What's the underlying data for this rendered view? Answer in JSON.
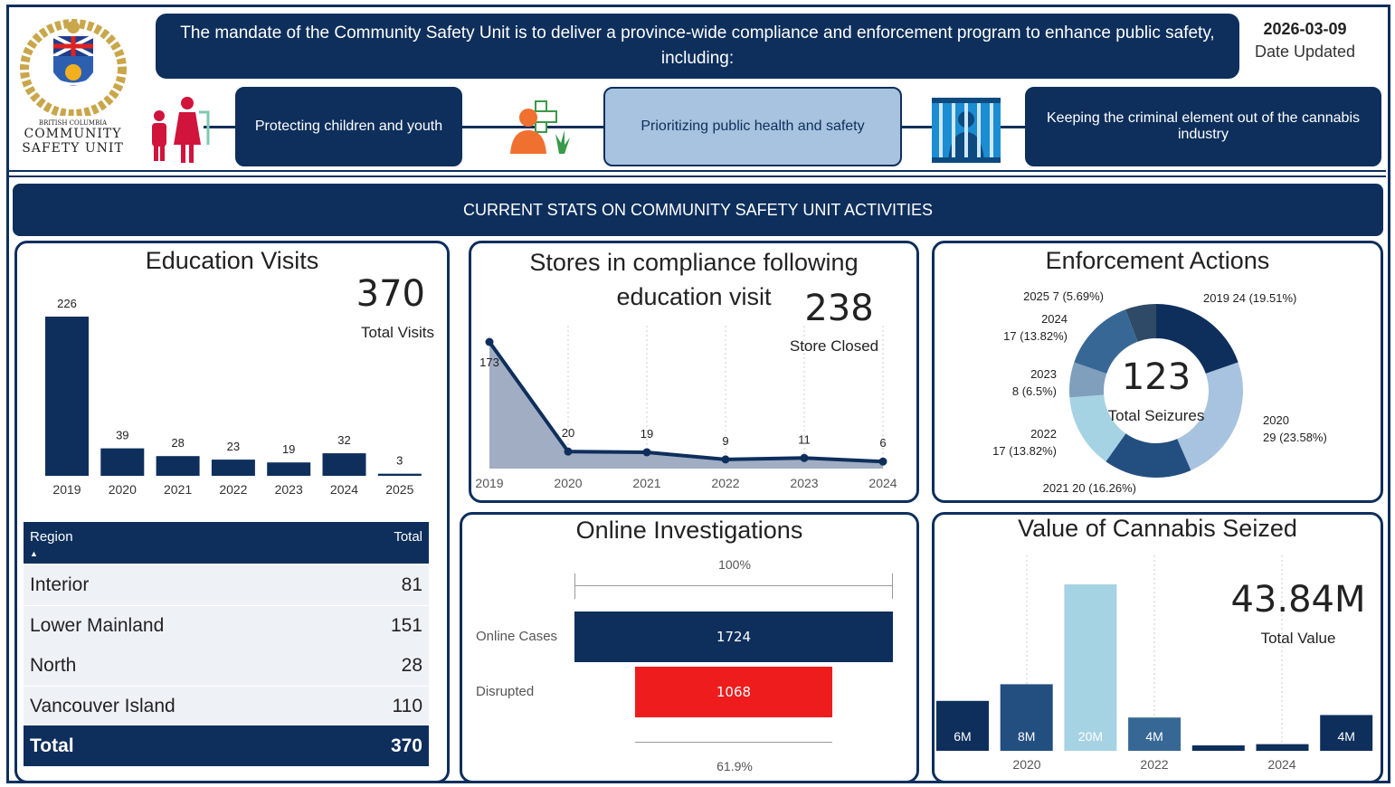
{
  "header": {
    "logo_text": [
      "BRITISH COLUMBIA",
      "COMMUNITY",
      "SAFETY UNIT"
    ],
    "mandate": "The mandate of the Community Safety Unit is to deliver a province-wide compliance and enforcement program to enhance public safety, including:",
    "date": "2026-03-09",
    "date_label": "Date Updated",
    "pillars": [
      {
        "label": "Protecting children and youth",
        "icon": "family-icon"
      },
      {
        "label": "Prioritizing public health and safety",
        "icon": "health-cannabis-icon"
      },
      {
        "label": "Keeping the criminal element out of the cannabis industry",
        "icon": "jail-icon"
      }
    ]
  },
  "banner": "CURRENT STATS ON COMMUNITY SAFETY UNIT ACTIVITIES",
  "colors": {
    "navy": "#0e2f5c",
    "red": "#ee1c1c",
    "light_blue": "#a6d3e3"
  },
  "education": {
    "title": "Education Visits",
    "total": "370",
    "total_label": "Total Visits",
    "table": {
      "headers": [
        "Region",
        "Total"
      ],
      "rows": [
        [
          "Interior",
          "81"
        ],
        [
          "Lower Mainland",
          "151"
        ],
        [
          "North",
          "28"
        ],
        [
          "Vancouver Island",
          "110"
        ]
      ],
      "total": [
        "Total",
        "370"
      ]
    }
  },
  "compliance": {
    "title_line1": "Stores in compliance following",
    "title_line2": "education visit",
    "total": "238",
    "total_label": "Store Closed"
  },
  "enforcement": {
    "title": "Enforcement Actions",
    "total": "123",
    "total_label": "Total Seizures"
  },
  "online": {
    "title": "Online Investigations",
    "top_pct": "100%",
    "bottom_pct": "61.9%",
    "rows": [
      {
        "label": "Online Cases",
        "value": 1724
      },
      {
        "label": "Disrupted",
        "value": 1068
      }
    ]
  },
  "cannabis": {
    "title": "Value of Cannabis Seized",
    "total": "43.84M",
    "total_label": "Total Value"
  },
  "chart_data": [
    {
      "type": "bar",
      "title": "Education Visits",
      "categories": [
        "2019",
        "2020",
        "2021",
        "2022",
        "2023",
        "2024",
        "2025"
      ],
      "values": [
        226,
        39,
        28,
        23,
        19,
        32,
        3
      ]
    },
    {
      "type": "area",
      "title": "Stores in compliance following education visit",
      "x": [
        "2019",
        "2020",
        "2021",
        "2022",
        "2023",
        "2024"
      ],
      "values": [
        173,
        20,
        19,
        9,
        11,
        6
      ]
    },
    {
      "type": "pie",
      "title": "Enforcement Actions",
      "categories": [
        "2019",
        "2020",
        "2021",
        "2022",
        "2023",
        "2024",
        "2025"
      ],
      "values": [
        24,
        29,
        20,
        17,
        8,
        17,
        7
      ],
      "labels": [
        "2019 24 (19.51%)",
        "2020|29 (23.58%)",
        "2021 20 (16.26%)",
        "2022|17 (13.82%)",
        "2023|8 (6.5%)",
        "2024|17 (13.82%)",
        "2025 7 (5.69%)"
      ],
      "colors": [
        "#0e2f5c",
        "#a7c3df",
        "#234e80",
        "#a6d3e3",
        "#7f9fbd",
        "#376895",
        "#2f4a66"
      ]
    },
    {
      "type": "bar",
      "title": "Value of Cannabis Seized",
      "categories": [
        "2019",
        "2020",
        "2021",
        "2022",
        "2023",
        "2024",
        "2025"
      ],
      "values": [
        6,
        8,
        20,
        4,
        0.4,
        0.8,
        4.3
      ],
      "labels": [
        "6M",
        "8M",
        "20M",
        "4M",
        "",
        "",
        "4M"
      ],
      "tick_labels": [
        "2020",
        "2022",
        "2024"
      ],
      "colors": [
        "#0e2f5c",
        "#234e80",
        "#a6d3e3",
        "#376895",
        "#0e2f5c",
        "#0e2f5c",
        "#0e2f5c"
      ]
    }
  ]
}
